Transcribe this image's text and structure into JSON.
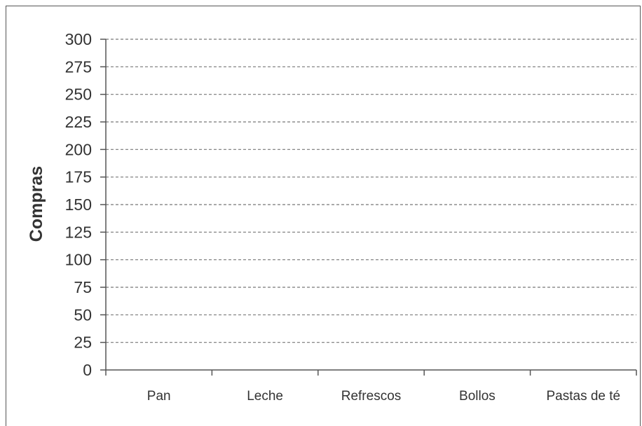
{
  "chart_data": {
    "type": "bar",
    "categories": [
      "Pan",
      "Leche",
      "Refrescos",
      "Bollos",
      "Pastas de té"
    ],
    "values": [
      null,
      null,
      null,
      null,
      null
    ],
    "title": "",
    "xlabel": "",
    "ylabel": "Compras",
    "ylim": [
      0,
      300
    ],
    "yticks": [
      0,
      25,
      50,
      75,
      100,
      125,
      150,
      175,
      200,
      225,
      250,
      275,
      300
    ],
    "grid": true,
    "grid_style": "dashed",
    "legend": "none",
    "colors": {
      "axis": "#555555",
      "grid": "#777777",
      "text": "#333333",
      "frame": "#555555"
    }
  }
}
